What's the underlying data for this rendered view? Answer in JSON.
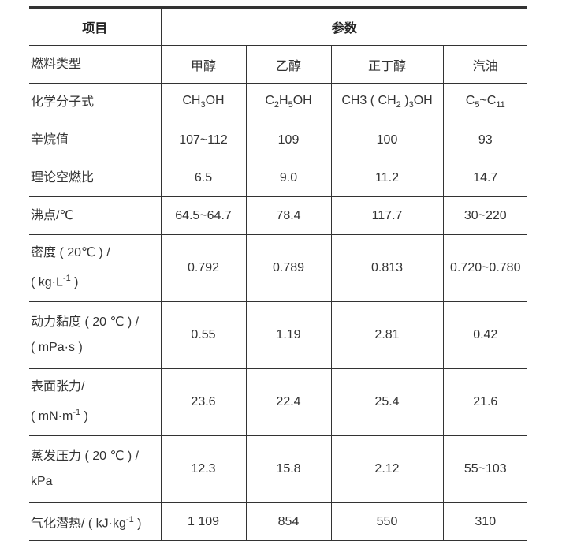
{
  "header": {
    "item": "项目",
    "params": "参数"
  },
  "rows": [
    {
      "label": [
        [
          "燃料类型"
        ]
      ],
      "values": [
        [
          "甲醇"
        ],
        [
          "乙醇"
        ],
        [
          "正丁醇"
        ],
        [
          "汽油"
        ]
      ]
    },
    {
      "label": [
        [
          "化学分子式"
        ]
      ],
      "values": [
        [
          [
            "CH"
          ],
          [
            "3",
            "sub"
          ],
          [
            "OH"
          ]
        ],
        [
          [
            "C"
          ],
          [
            "2",
            "sub"
          ],
          [
            "H"
          ],
          [
            "5",
            "sub"
          ],
          [
            "OH"
          ]
        ],
        [
          [
            "CH"
          ],
          [
            "3 ( CH"
          ],
          [
            "2",
            "sub"
          ],
          [
            " )"
          ],
          [
            "3",
            "sub"
          ],
          [
            "OH"
          ]
        ],
        [
          [
            "C"
          ],
          [
            "5",
            "sub"
          ],
          [
            "~C"
          ],
          [
            "11",
            "sub"
          ]
        ]
      ]
    },
    {
      "label": [
        [
          "辛烷值"
        ]
      ],
      "values": [
        [
          "107~112"
        ],
        [
          "109"
        ],
        [
          "100"
        ],
        [
          "93"
        ]
      ]
    },
    {
      "label": [
        [
          "理论空燃比"
        ]
      ],
      "values": [
        [
          "6.5"
        ],
        [
          "9.0"
        ],
        [
          "11.2"
        ],
        [
          "14.7"
        ]
      ]
    },
    {
      "label": [
        [
          "沸点/℃"
        ]
      ],
      "values": [
        [
          "64.5~64.7"
        ],
        [
          "78.4"
        ],
        [
          "117.7"
        ],
        [
          "30~220"
        ]
      ]
    },
    {
      "tall": true,
      "label": [
        [
          "密度 ( 20℃ ) /"
        ],
        [
          "\n( kg·L"
        ],
        [
          "-1",
          "sup"
        ],
        [
          " )"
        ]
      ],
      "values": [
        [
          "0.792"
        ],
        [
          "0.789"
        ],
        [
          "0.813"
        ],
        [
          "0.720~0.780"
        ]
      ]
    },
    {
      "tall": true,
      "label": [
        [
          "动力黏度 ( 20 ℃ ) /"
        ],
        [
          "\n( mPa·s )"
        ]
      ],
      "values": [
        [
          "0.55"
        ],
        [
          "1.19"
        ],
        [
          "2.81"
        ],
        [
          "0.42"
        ]
      ]
    },
    {
      "tall": true,
      "label": [
        [
          "表面张力/"
        ],
        [
          "\n( mN·m"
        ],
        [
          "-1",
          "sup"
        ],
        [
          " )"
        ]
      ],
      "values": [
        [
          "23.6"
        ],
        [
          "22.4"
        ],
        [
          "25.4"
        ],
        [
          "21.6"
        ]
      ]
    },
    {
      "tall": true,
      "label": [
        [
          "蒸发压力 ( 20 ℃ ) /"
        ],
        [
          "\nkPa"
        ]
      ],
      "values": [
        [
          "12.3"
        ],
        [
          "15.8"
        ],
        [
          "2.12"
        ],
        [
          "55~103"
        ]
      ]
    },
    {
      "label": [
        [
          "气化潜热/ ( kJ·kg"
        ],
        [
          "-1",
          "sup"
        ],
        [
          " )"
        ]
      ],
      "values": [
        [
          "1 109"
        ],
        [
          "854"
        ],
        [
          "550"
        ],
        [
          "310"
        ]
      ]
    }
  ]
}
